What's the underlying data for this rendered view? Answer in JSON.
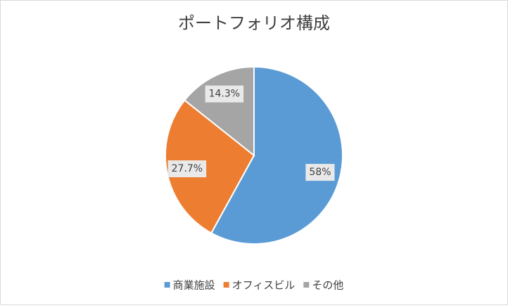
{
  "chart_data": {
    "type": "pie",
    "title": "ポートフォリオ構成",
    "categories": [
      "商業施設",
      "オフィスビル",
      "その他"
    ],
    "values": [
      58,
      27.7,
      14.3
    ],
    "value_labels": [
      "58%",
      "27.7%",
      "14.3%"
    ],
    "colors": [
      "#5b9bd5",
      "#ed7d31",
      "#a5a5a5"
    ],
    "legend": "bottom"
  }
}
